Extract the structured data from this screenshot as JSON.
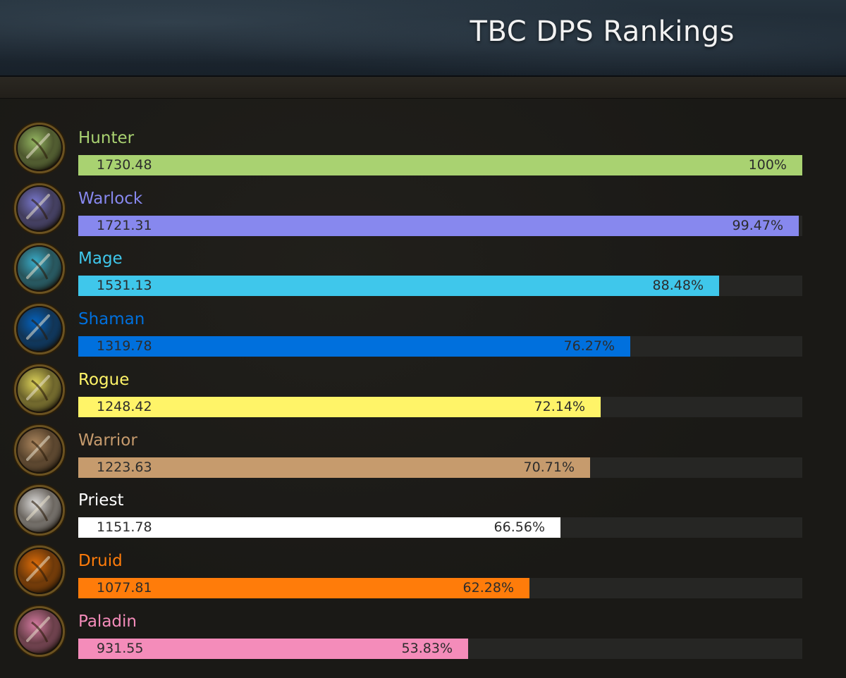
{
  "header": {
    "title": "TBC DPS Rankings"
  },
  "chart_data": {
    "type": "bar",
    "orientation": "horizontal",
    "xlim": [
      0,
      100
    ],
    "categories": [
      "Hunter",
      "Warlock",
      "Mage",
      "Shaman",
      "Rogue",
      "Warrior",
      "Priest",
      "Druid",
      "Paladin"
    ],
    "series": [
      {
        "values": [
          1730.48,
          1721.31,
          1531.13,
          1319.78,
          1248.42,
          1223.63,
          1151.78,
          1077.81,
          931.55
        ]
      }
    ],
    "percent_labels": [
      "100%",
      "99.47%",
      "88.48%",
      "76.27%",
      "72.14%",
      "70.71%",
      "66.56%",
      "62.28%",
      "53.83%"
    ],
    "rows": [
      {
        "class": "Hunter",
        "dps": "1730.48",
        "pct_label": "100%",
        "pct": 100,
        "color": "#a9d271",
        "icon": "hunter-class-icon",
        "icon_label": "HUNTER"
      },
      {
        "class": "Warlock",
        "dps": "1721.31",
        "pct_label": "99.47%",
        "pct": 99.47,
        "color": "#8788ee",
        "icon": "warlock-class-icon",
        "icon_label": "WARLOCK"
      },
      {
        "class": "Mage",
        "dps": "1531.13",
        "pct_label": "88.48%",
        "pct": 88.48,
        "color": "#3fc7eb",
        "icon": "mage-class-icon",
        "icon_label": "MAGE"
      },
      {
        "class": "Shaman",
        "dps": "1319.78",
        "pct_label": "76.27%",
        "pct": 76.27,
        "color": "#0070dd",
        "icon": "shaman-class-icon",
        "icon_label": "SHAMAN"
      },
      {
        "class": "Rogue",
        "dps": "1248.42",
        "pct_label": "72.14%",
        "pct": 72.14,
        "color": "#fff468",
        "icon": "rogue-class-icon",
        "icon_label": "ROGUE"
      },
      {
        "class": "Warrior",
        "dps": "1223.63",
        "pct_label": "70.71%",
        "pct": 70.71,
        "color": "#c69b6d",
        "icon": "warrior-class-icon",
        "icon_label": "WARRIOR"
      },
      {
        "class": "Priest",
        "dps": "1151.78",
        "pct_label": "66.56%",
        "pct": 66.56,
        "color": "#ffffff",
        "icon": "priest-class-icon",
        "icon_label": "PRIEST"
      },
      {
        "class": "Druid",
        "dps": "1077.81",
        "pct_label": "62.28%",
        "pct": 62.28,
        "color": "#ff7c0a",
        "icon": "druid-class-icon",
        "icon_label": "DRUID"
      },
      {
        "class": "Paladin",
        "dps": "931.55",
        "pct_label": "53.83%",
        "pct": 53.83,
        "color": "#f48cba",
        "icon": "paladin-class-icon",
        "icon_label": "PALADIN"
      }
    ]
  }
}
